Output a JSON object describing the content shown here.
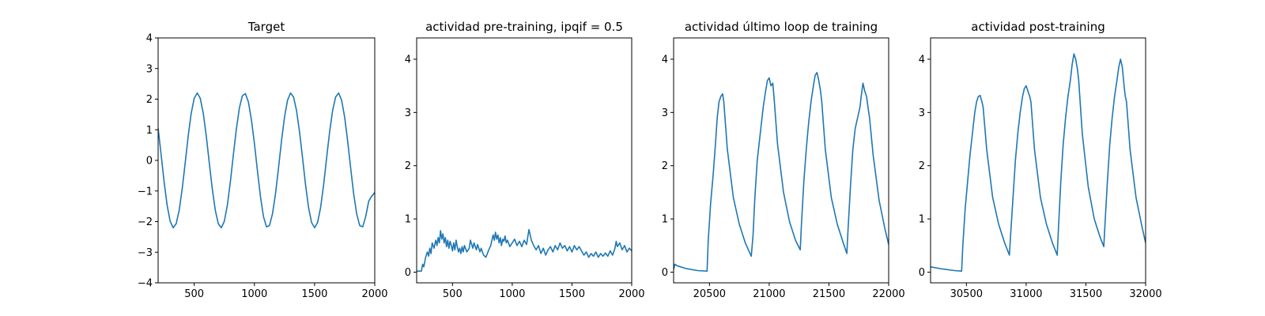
{
  "colors": {
    "series": "#1f77b4",
    "axes": "#000000",
    "background": "#ffffff"
  },
  "chart_data": [
    {
      "type": "line",
      "title": "Target",
      "xlim": [
        200,
        2000
      ],
      "ylim": [
        -4,
        4
      ],
      "xticks": [
        500,
        1000,
        1500,
        2000
      ],
      "yticks": [
        -4,
        -3,
        -2,
        -1,
        0,
        1,
        2,
        3,
        4
      ],
      "xlabel": "",
      "ylabel": "",
      "grid": false,
      "series": [
        {
          "x": [
            200,
            225,
            250,
            275,
            300,
            325,
            350,
            375,
            400,
            425,
            450,
            475,
            500,
            525,
            550,
            575,
            600,
            625,
            650,
            675,
            700,
            725,
            750,
            775,
            800,
            825,
            850,
            875,
            900,
            925,
            950,
            975,
            1000,
            1025,
            1050,
            1075,
            1100,
            1125,
            1150,
            1175,
            1200,
            1225,
            1250,
            1275,
            1300,
            1325,
            1350,
            1375,
            1400,
            1425,
            1450,
            1475,
            1500,
            1525,
            1550,
            1575,
            1600,
            1625,
            1650,
            1675,
            1700,
            1725,
            1750,
            1775,
            1800,
            1825,
            1850,
            1875,
            1900,
            1925,
            1950,
            1975,
            2000
          ],
          "y": [
            1.05,
            0.18,
            -0.71,
            -1.47,
            -1.99,
            -2.2,
            -2.07,
            -1.63,
            -0.93,
            -0.08,
            0.8,
            1.54,
            2.03,
            2.2,
            2.03,
            1.54,
            0.8,
            -0.08,
            -0.93,
            -1.63,
            -2.07,
            -2.2,
            -1.99,
            -1.47,
            -0.71,
            0.18,
            1.02,
            1.71,
            2.11,
            2.18,
            1.91,
            1.33,
            0.56,
            -0.33,
            -1.17,
            -1.83,
            -2.17,
            -2.13,
            -1.75,
            -1.1,
            -0.26,
            0.63,
            1.41,
            1.96,
            2.2,
            2.07,
            1.63,
            0.93,
            0.08,
            -0.8,
            -1.54,
            -2.03,
            -2.2,
            -2.03,
            -1.54,
            -0.8,
            0.08,
            0.93,
            1.63,
            2.07,
            2.2,
            1.96,
            1.41,
            0.63,
            -0.26,
            -1.1,
            -1.75,
            -2.13,
            -2.17,
            -1.83,
            -1.33,
            -1.17,
            -1.05
          ]
        }
      ]
    },
    {
      "type": "line",
      "title": "actividad pre-training, ipqif = 0.5",
      "xlim": [
        200,
        2000
      ],
      "ylim": [
        -0.2,
        4.4
      ],
      "xticks": [
        500,
        1000,
        1500,
        2000
      ],
      "yticks": [
        0,
        1,
        2,
        3,
        4
      ],
      "xlabel": "",
      "ylabel": "",
      "grid": false,
      "series": [
        {
          "x": [
            200,
            240,
            250,
            260,
            275,
            290,
            300,
            310,
            320,
            330,
            345,
            360,
            370,
            380,
            390,
            400,
            410,
            420,
            430,
            440,
            450,
            460,
            470,
            480,
            490,
            500,
            510,
            520,
            530,
            540,
            550,
            560,
            570,
            580,
            590,
            600,
            620,
            640,
            650,
            670,
            680,
            700,
            710,
            730,
            740,
            760,
            780,
            800,
            820,
            840,
            850,
            860,
            870,
            880,
            890,
            900,
            910,
            920,
            930,
            940,
            950,
            960,
            980,
            1000,
            1020,
            1040,
            1060,
            1080,
            1100,
            1120,
            1140,
            1150,
            1160,
            1180,
            1200,
            1220,
            1240,
            1260,
            1280,
            1300,
            1320,
            1340,
            1360,
            1380,
            1400,
            1420,
            1440,
            1460,
            1480,
            1500,
            1520,
            1540,
            1560,
            1580,
            1600,
            1620,
            1640,
            1660,
            1680,
            1700,
            1720,
            1740,
            1760,
            1780,
            1800,
            1820,
            1840,
            1860,
            1870,
            1880,
            1900,
            1920,
            1940,
            1960,
            1980,
            2000
          ],
          "y": [
            0.02,
            0.02,
            0.15,
            0.1,
            0.28,
            0.38,
            0.3,
            0.45,
            0.35,
            0.55,
            0.45,
            0.6,
            0.5,
            0.65,
            0.55,
            0.78,
            0.62,
            0.72,
            0.55,
            0.65,
            0.48,
            0.6,
            0.45,
            0.58,
            0.5,
            0.4,
            0.55,
            0.42,
            0.6,
            0.48,
            0.38,
            0.45,
            0.35,
            0.48,
            0.38,
            0.5,
            0.38,
            0.45,
            0.6,
            0.45,
            0.55,
            0.42,
            0.52,
            0.38,
            0.45,
            0.32,
            0.28,
            0.4,
            0.5,
            0.7,
            0.6,
            0.75,
            0.62,
            0.7,
            0.55,
            0.65,
            0.5,
            0.62,
            0.58,
            0.68,
            0.55,
            0.6,
            0.48,
            0.55,
            0.62,
            0.5,
            0.58,
            0.48,
            0.6,
            0.52,
            0.8,
            0.7,
            0.6,
            0.5,
            0.42,
            0.5,
            0.35,
            0.45,
            0.32,
            0.42,
            0.48,
            0.38,
            0.5,
            0.42,
            0.55,
            0.45,
            0.5,
            0.4,
            0.48,
            0.38,
            0.5,
            0.42,
            0.48,
            0.4,
            0.32,
            0.38,
            0.28,
            0.35,
            0.3,
            0.38,
            0.28,
            0.35,
            0.3,
            0.36,
            0.3,
            0.4,
            0.32,
            0.45,
            0.58,
            0.48,
            0.55,
            0.42,
            0.5,
            0.38,
            0.45,
            0.4
          ]
        }
      ]
    },
    {
      "type": "line",
      "title": "actividad último loop de training",
      "xlim": [
        20200,
        22000
      ],
      "ylim": [
        -0.2,
        4.4
      ],
      "xticks": [
        20500,
        21000,
        21500,
        22000
      ],
      "yticks": [
        0,
        1,
        2,
        3,
        4
      ],
      "xlabel": "",
      "ylabel": "",
      "grid": false,
      "series": [
        {
          "x": [
            20200,
            20210,
            20230,
            20300,
            20400,
            20480,
            20490,
            20510,
            20530,
            20550,
            20565,
            20580,
            20595,
            20610,
            20620,
            20650,
            20700,
            20750,
            20800,
            20850,
            20865,
            20880,
            20900,
            20930,
            20950,
            20970,
            20985,
            21000,
            21015,
            21030,
            21040,
            21070,
            21120,
            21170,
            21220,
            21260,
            21270,
            21290,
            21310,
            21330,
            21350,
            21370,
            21385,
            21400,
            21415,
            21430,
            21440,
            21470,
            21520,
            21570,
            21620,
            21650,
            21660,
            21680,
            21700,
            21720,
            21740,
            21760,
            21770,
            21785,
            21800,
            21815,
            21830,
            21840,
            21870,
            21920,
            21970,
            22000
          ],
          "y": [
            0.05,
            0.15,
            0.12,
            0.07,
            0.03,
            0.02,
            0.6,
            1.3,
            1.8,
            2.4,
            2.9,
            3.2,
            3.3,
            3.35,
            3.2,
            2.3,
            1.4,
            0.9,
            0.55,
            0.3,
            0.7,
            1.4,
            2.1,
            2.7,
            3.1,
            3.4,
            3.6,
            3.65,
            3.5,
            3.55,
            3.3,
            2.4,
            1.5,
            0.95,
            0.6,
            0.42,
            0.9,
            1.7,
            2.3,
            2.8,
            3.2,
            3.5,
            3.7,
            3.75,
            3.6,
            3.4,
            3.2,
            2.3,
            1.4,
            0.9,
            0.55,
            0.35,
            0.8,
            1.6,
            2.3,
            2.7,
            2.9,
            3.1,
            3.3,
            3.55,
            3.4,
            3.3,
            3.05,
            2.9,
            2.2,
            1.35,
            0.8,
            0.52
          ]
        }
      ]
    },
    {
      "type": "line",
      "title": "actividad post-training",
      "xlim": [
        30200,
        32000
      ],
      "ylim": [
        -0.2,
        4.4
      ],
      "xticks": [
        30500,
        31000,
        31500,
        32000
      ],
      "yticks": [
        0,
        1,
        2,
        3,
        4
      ],
      "xlabel": "",
      "ylabel": "",
      "grid": false,
      "series": [
        {
          "x": [
            30200,
            30300,
            30400,
            30460,
            30470,
            30490,
            30510,
            30530,
            30550,
            30570,
            30585,
            30600,
            30615,
            30630,
            30640,
            30670,
            30720,
            30770,
            30820,
            30860,
            30870,
            30890,
            30910,
            30930,
            30950,
            30970,
            30985,
            31000,
            31015,
            31030,
            31040,
            31070,
            31120,
            31170,
            31220,
            31260,
            31270,
            31290,
            31310,
            31330,
            31350,
            31370,
            31385,
            31400,
            31415,
            31430,
            31440,
            31470,
            31520,
            31570,
            31620,
            31650,
            31660,
            31680,
            31700,
            31720,
            31740,
            31760,
            31775,
            31790,
            31805,
            31820,
            31830,
            31840,
            31870,
            31920,
            31970,
            32000
          ],
          "y": [
            0.1,
            0.06,
            0.03,
            0.02,
            0.5,
            1.2,
            1.7,
            2.2,
            2.6,
            3.0,
            3.2,
            3.3,
            3.32,
            3.2,
            3.1,
            2.3,
            1.4,
            0.9,
            0.55,
            0.32,
            0.7,
            1.4,
            2.1,
            2.6,
            3.0,
            3.3,
            3.45,
            3.5,
            3.4,
            3.3,
            3.2,
            2.3,
            1.4,
            0.9,
            0.55,
            0.32,
            0.8,
            1.7,
            2.4,
            2.9,
            3.3,
            3.6,
            3.9,
            4.1,
            4.0,
            3.8,
            3.6,
            2.6,
            1.6,
            1.0,
            0.65,
            0.48,
            0.9,
            1.7,
            2.4,
            2.9,
            3.3,
            3.6,
            3.85,
            4.0,
            3.85,
            3.5,
            3.3,
            3.2,
            2.3,
            1.4,
            0.85,
            0.55
          ]
        }
      ]
    }
  ]
}
